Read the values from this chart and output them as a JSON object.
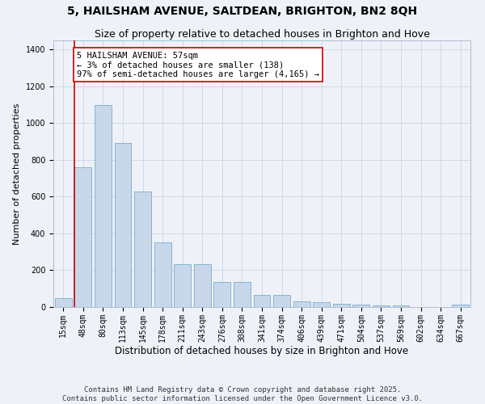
{
  "title": "5, HAILSHAM AVENUE, SALTDEAN, BRIGHTON, BN2 8QH",
  "subtitle": "Size of property relative to detached houses in Brighton and Hove",
  "xlabel": "Distribution of detached houses by size in Brighton and Hove",
  "ylabel": "Number of detached properties",
  "categories": [
    "15sqm",
    "48sqm",
    "80sqm",
    "113sqm",
    "145sqm",
    "178sqm",
    "211sqm",
    "243sqm",
    "276sqm",
    "308sqm",
    "341sqm",
    "374sqm",
    "406sqm",
    "439sqm",
    "471sqm",
    "504sqm",
    "537sqm",
    "569sqm",
    "602sqm",
    "634sqm",
    "667sqm"
  ],
  "values": [
    48,
    760,
    1100,
    890,
    630,
    350,
    232,
    232,
    135,
    135,
    65,
    65,
    30,
    25,
    18,
    12,
    10,
    10,
    1,
    1,
    12
  ],
  "bar_color": "#c8d8ea",
  "bar_edge_color": "#7aaac8",
  "bg_color": "#eef2f8",
  "grid_color": "#d0d8e8",
  "annotation_text": "5 HAILSHAM AVENUE: 57sqm\n← 3% of detached houses are smaller (138)\n97% of semi-detached houses are larger (4,165) →",
  "vline_color": "#cc0000",
  "ylim": [
    0,
    1450
  ],
  "yticks": [
    0,
    200,
    400,
    600,
    800,
    1000,
    1200,
    1400
  ],
  "footer": "Contains HM Land Registry data © Crown copyright and database right 2025.\nContains public sector information licensed under the Open Government Licence v3.0.",
  "title_fontsize": 10,
  "subtitle_fontsize": 9,
  "xlabel_fontsize": 8.5,
  "ylabel_fontsize": 8,
  "tick_fontsize": 7,
  "annotation_fontsize": 7.5,
  "footer_fontsize": 6.5
}
